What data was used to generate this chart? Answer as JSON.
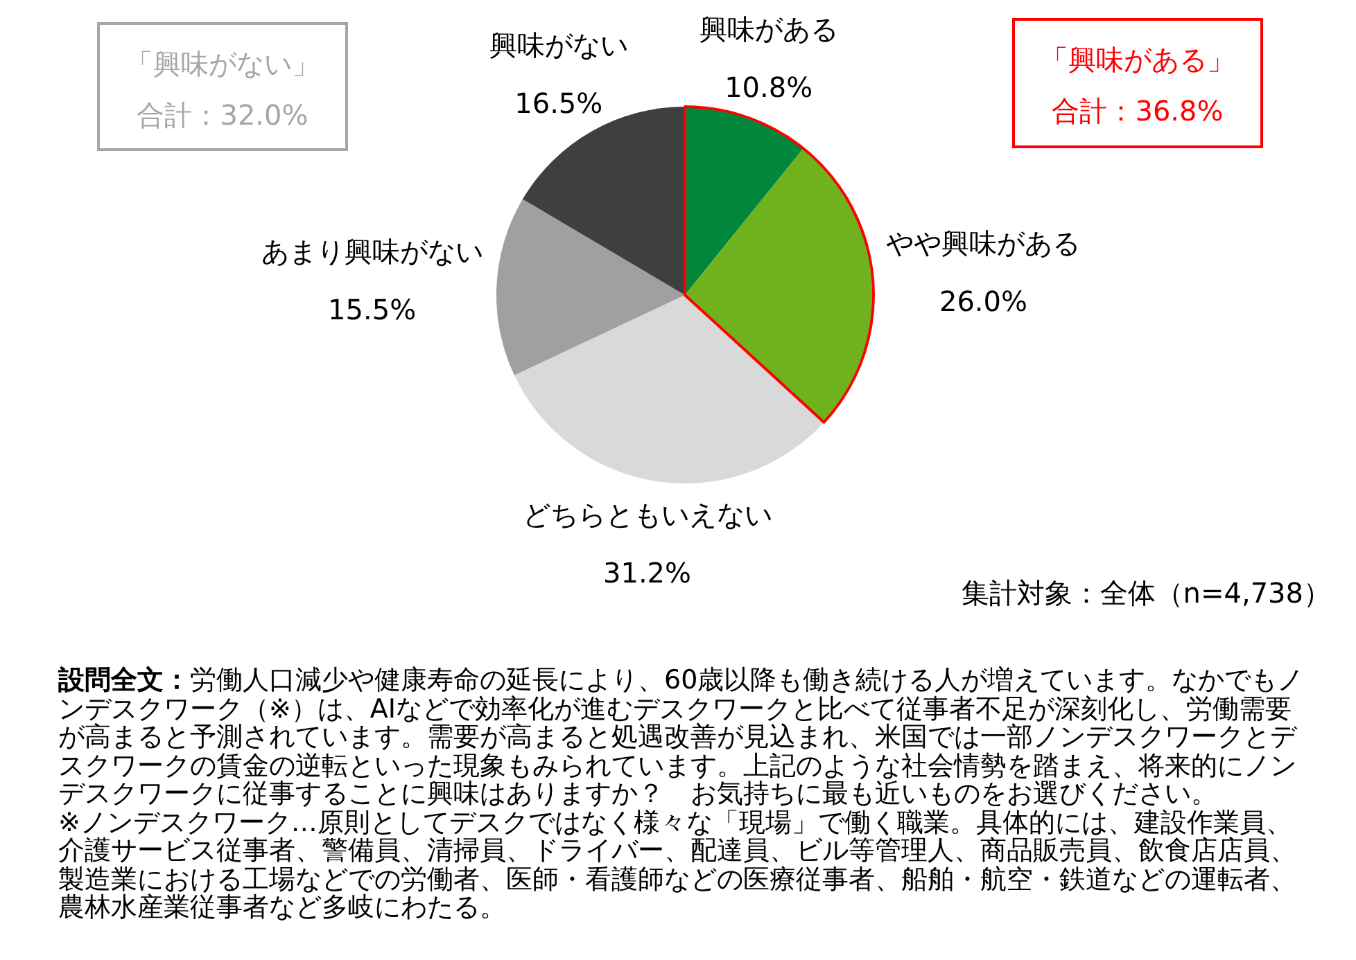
{
  "chart_data": {
    "type": "pie",
    "categories": [
      "興味がある",
      "やや興味がある",
      "どちらともいえない",
      "あまり興味がない",
      "興味がない"
    ],
    "values": [
      10.8,
      26.0,
      31.2,
      15.5,
      16.5
    ],
    "colors": [
      "#00873c",
      "#70b21e",
      "#d9d9d9",
      "#a0a0a0",
      "#3f3f3f"
    ],
    "value_labels": [
      "10.8%",
      "26.0%",
      "31.2%",
      "15.5%",
      "16.5%"
    ],
    "annotations": [
      "「興味がない」",
      "合計：32.0%",
      "「興味がある」",
      "合計：36.8%",
      "集計対象：全体（n=4,738）",
      "**設問全文：**労働人口減少や健康寿命の延長により、60歳以降も働き続ける人が増えています。なかでもノンデスクワーク（※）は、AIなどで効率化が進むデスクワークと比べて従事者不足が深刻化し、労働需要が高まると予測されています。需要が高まると処遇改善が見込まれ、米国では一部ノンデスクワークとデスクワークの賃金の逆転といった現象もみられています。上記のような社会情勢を踏まえ、将来的にノンデスクワークに従事することに興味はありますか？　お気持ちに最も近いものをお選びください。",
      "※ノンデスクワーク…原則としてデスクではなく様々な「現場」で働く職業。具体的には、建設作業員、介護サービス従事者、警備員、清掃員、ドライバー、配達員、ビル等管理人、商品販売員、飲食店店員、製造業における工場などでの労働者、医師・看護師などの医療従事者、船舶・航空・鉄道などの運転者、農林水産業従事者など多岐にわたる。"
    ]
  }
}
